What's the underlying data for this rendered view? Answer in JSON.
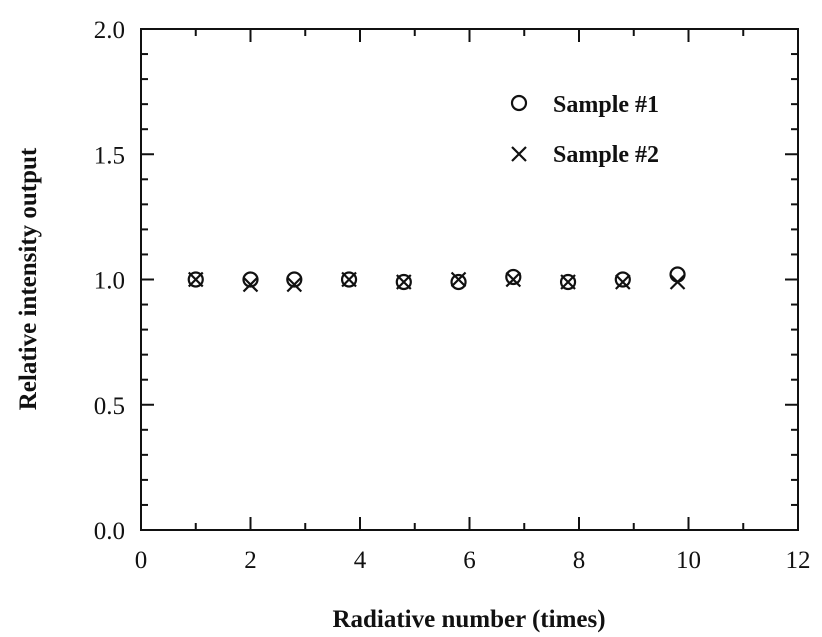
{
  "chart_data": {
    "type": "scatter",
    "title": "",
    "xlabel": "Radiative number (times)",
    "ylabel": "Relative intensity output",
    "xlim": [
      0,
      12
    ],
    "ylim": [
      0.0,
      2.0
    ],
    "xticks": [
      "0",
      "2",
      "4",
      "6",
      "8",
      "10",
      "12"
    ],
    "yticks": [
      "0.0",
      "0.5",
      "1.0",
      "1.5",
      "2.0"
    ],
    "grid": false,
    "legend_position": "top-right",
    "series": [
      {
        "name": "Sample #1",
        "marker": "circle",
        "x": [
          1,
          2,
          2.8,
          3.8,
          4.8,
          5.8,
          6.8,
          7.8,
          8.8,
          9.8
        ],
        "y": [
          1.0,
          1.0,
          1.0,
          1.0,
          0.99,
          0.99,
          1.01,
          0.99,
          1.0,
          1.02
        ]
      },
      {
        "name": "Sample #2",
        "marker": "x",
        "x": [
          1,
          2,
          2.8,
          3.8,
          4.8,
          5.8,
          6.8,
          7.8,
          8.8,
          9.8
        ],
        "y": [
          1.0,
          0.98,
          0.98,
          1.0,
          0.99,
          1.0,
          1.0,
          0.99,
          0.99,
          0.99
        ]
      }
    ]
  }
}
